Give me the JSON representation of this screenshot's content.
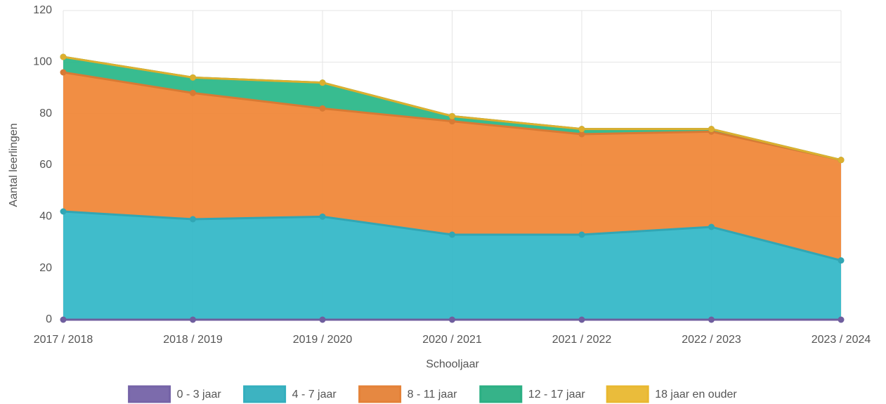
{
  "chart_data": {
    "type": "stacked_area",
    "x_label": "Schooljaar",
    "y_label": "Aantal leerlingen",
    "categories": [
      "2017 / 2018",
      "2018 / 2019",
      "2019 / 2020",
      "2020 / 2021",
      "2021 / 2022",
      "2022 / 2023",
      "2023 / 2024"
    ],
    "series": [
      {
        "name": "0 - 3 jaar",
        "color": "#7b68b0",
        "values": [
          0,
          0,
          0,
          0,
          0,
          0,
          0
        ]
      },
      {
        "name": "4 - 7 jaar",
        "color": "#36b8c8",
        "values": [
          42,
          39,
          40,
          33,
          33,
          36,
          23
        ]
      },
      {
        "name": "8 - 11 jaar",
        "color": "#f0883a",
        "values": [
          54,
          49,
          42,
          44,
          39,
          37,
          39
        ]
      },
      {
        "name": "12 - 17 jaar",
        "color": "#2db88a",
        "values": [
          6,
          6,
          10,
          2,
          2,
          1,
          0
        ]
      },
      {
        "name": "18 jaar en ouder",
        "color": "#f5c233",
        "values": [
          0,
          0,
          0,
          0,
          0,
          0,
          0
        ]
      }
    ],
    "ylim": [
      0,
      120
    ],
    "yticks": [
      0,
      20,
      40,
      60,
      80,
      100,
      120
    ],
    "grid": true,
    "legend": "bottom"
  }
}
